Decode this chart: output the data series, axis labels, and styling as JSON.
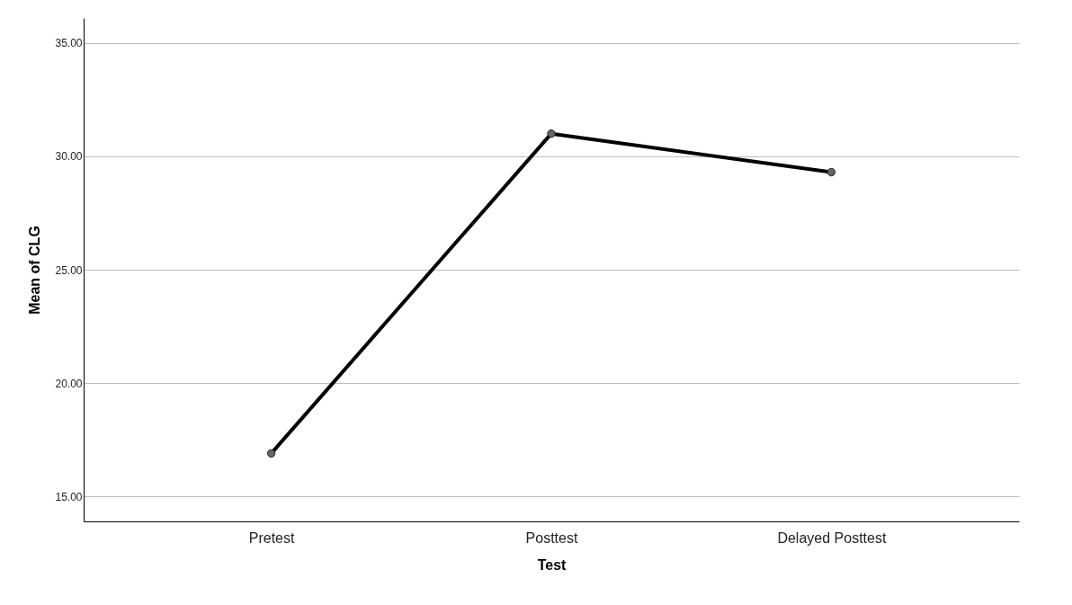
{
  "chart_data": {
    "type": "line",
    "xlabel": "Test",
    "ylabel": "Mean of CLG",
    "categories": [
      "Pretest",
      "Posttest",
      "Delayed Posttest"
    ],
    "series": [
      {
        "color": "#000000",
        "values": [
          16.9,
          31.0,
          29.3
        ]
      }
    ],
    "ylim": [
      13.9,
      36.1
    ],
    "yticks": [
      {
        "value": 15,
        "label": "15.00"
      },
      {
        "value": 20,
        "label": "20.00"
      },
      {
        "value": 25,
        "label": "25.00"
      },
      {
        "value": 30,
        "label": "30.00"
      },
      {
        "value": 35,
        "label": "35.00"
      }
    ],
    "grid": "y",
    "marker": "circle",
    "line_style": "solid"
  }
}
